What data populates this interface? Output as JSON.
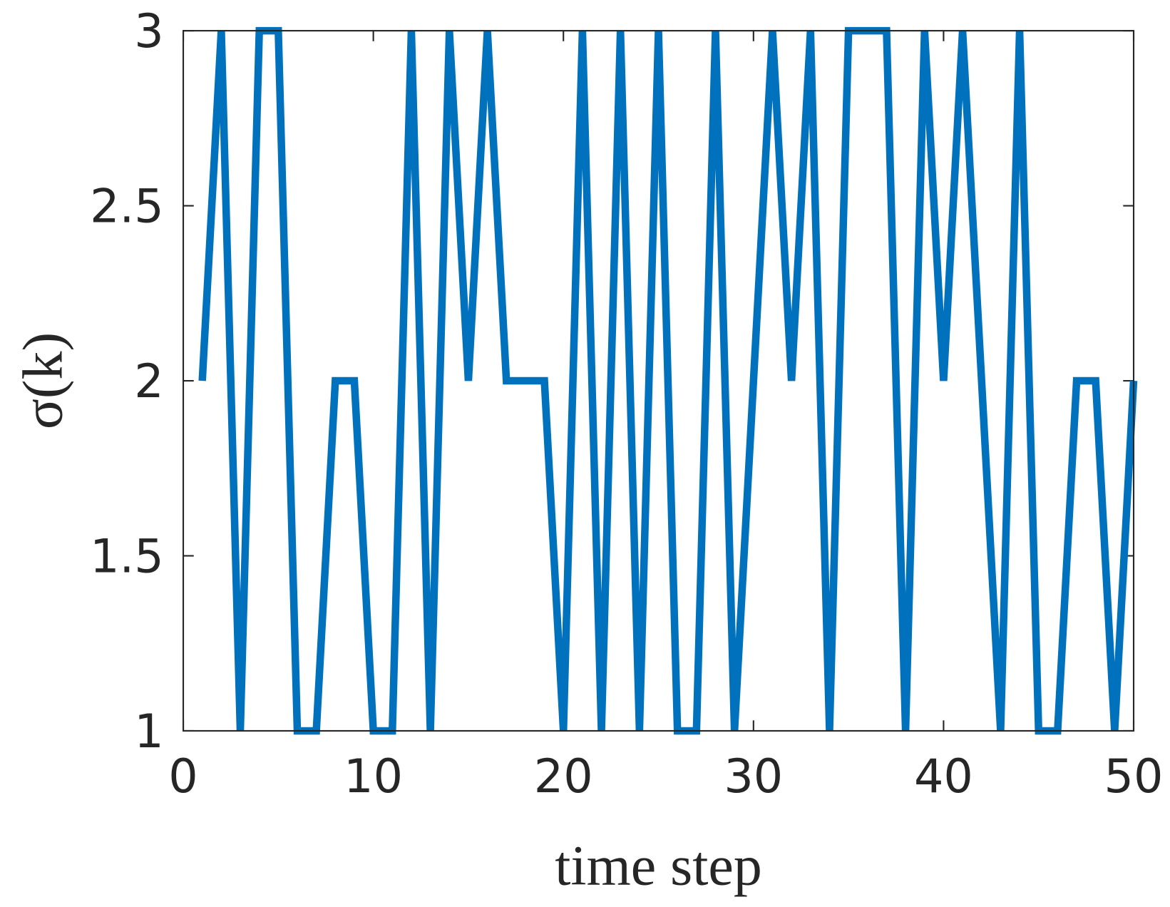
{
  "chart_data": {
    "type": "line",
    "x_label": "time step",
    "y_label": "σ(k)",
    "x": [
      1,
      2,
      3,
      4,
      5,
      6,
      7,
      8,
      9,
      10,
      11,
      12,
      13,
      14,
      15,
      16,
      17,
      18,
      19,
      20,
      21,
      22,
      23,
      24,
      25,
      26,
      27,
      28,
      29,
      30,
      31,
      32,
      33,
      34,
      35,
      36,
      37,
      38,
      39,
      40,
      41,
      42,
      43,
      44,
      45,
      46,
      47,
      48,
      49,
      50
    ],
    "values": [
      2,
      3,
      1,
      3,
      3,
      1,
      1,
      2,
      2,
      1,
      1,
      3,
      1,
      3,
      2,
      3,
      2,
      2,
      2,
      1,
      3,
      1,
      3,
      1,
      3,
      1,
      1,
      3,
      1,
      2,
      3,
      2,
      3,
      1,
      3,
      3,
      3,
      1,
      3,
      2,
      3,
      2,
      1,
      3,
      1,
      1,
      2,
      2,
      1,
      2
    ],
    "color": "#0072BD",
    "xlim": [
      0,
      50
    ],
    "xticks": [
      0,
      10,
      20,
      30,
      40,
      50
    ],
    "ylim": [
      1,
      3
    ],
    "yticks": [
      1,
      1.5,
      2,
      2.5,
      3
    ],
    "grid": false
  }
}
